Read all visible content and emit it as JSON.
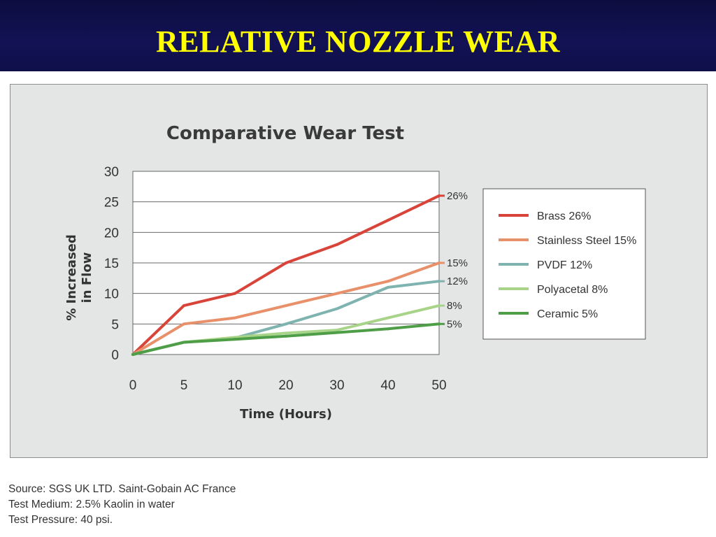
{
  "slide": {
    "title": "RELATIVE NOZZLE WEAR"
  },
  "chart_data": {
    "type": "line",
    "title": "Comparative Wear Test",
    "xlabel": "Time (Hours)",
    "ylabel_lines": [
      "% Increased",
      "in Flow"
    ],
    "x_categories": [
      "0",
      "5",
      "10",
      "20",
      "30",
      "40",
      "50"
    ],
    "y_ticks": [
      0,
      5,
      10,
      15,
      20,
      25,
      30
    ],
    "ylim": [
      0,
      30
    ],
    "grid": "horizontal",
    "legend_position": "right",
    "series": [
      {
        "name": "Brass 26%",
        "color": "#d9443a",
        "end_label": "26%",
        "values": [
          0,
          8,
          10,
          15,
          18,
          22,
          26
        ]
      },
      {
        "name": "Stainless Steel 15%",
        "color": "#e8906a",
        "end_label": "15%",
        "values": [
          0,
          5,
          6,
          8,
          10,
          12,
          15
        ]
      },
      {
        "name": "PVDF 12%",
        "color": "#7fb3b0",
        "end_label": "12%",
        "values": [
          0,
          2,
          2.7,
          5,
          7.5,
          11,
          12
        ]
      },
      {
        "name": "Polyacetal 8%",
        "color": "#a8d48a",
        "end_label": "8%",
        "values": [
          0,
          2,
          2.8,
          3.5,
          4,
          6,
          8
        ]
      },
      {
        "name": "Ceramic 5%",
        "color": "#4e9e48",
        "end_label": "5%",
        "values": [
          0,
          2,
          2.5,
          3,
          3.6,
          4.2,
          5
        ]
      }
    ]
  },
  "notes": {
    "source": "Source: SGS UK LTD. Saint-Gobain AC France",
    "medium": "Test Medium: 2.5% Kaolin in water",
    "pressure": "Test Pressure: 40 psi."
  }
}
